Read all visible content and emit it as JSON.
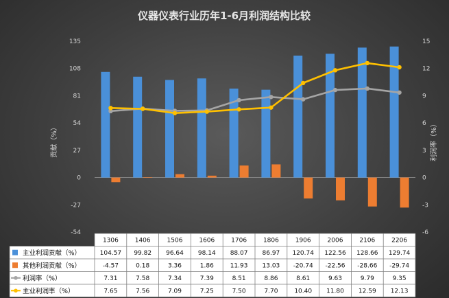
{
  "chart_data": {
    "type": "bar",
    "title": "仪器仪表行业历年1-6月利润结构比较",
    "categories": [
      "1306",
      "1406",
      "1506",
      "1606",
      "1706",
      "1806",
      "1906",
      "2006",
      "2106",
      "2206"
    ],
    "y_left": {
      "label": "贡献（%）",
      "ticks": [
        "135",
        "108",
        "81",
        "54",
        "27",
        "0",
        "-27",
        "-54"
      ],
      "range": [
        -54,
        135
      ]
    },
    "y_right": {
      "label": "利润率（%）",
      "ticks": [
        "15",
        "12",
        "9",
        "6",
        "3",
        "0",
        "-3",
        "-6"
      ],
      "range": [
        -6,
        15
      ]
    },
    "series": [
      {
        "name": "主业利润贡献（%）",
        "kind": "bar",
        "axis": "left",
        "color": "#4a90d9",
        "values": [
          104.57,
          99.82,
          96.64,
          98.14,
          88.07,
          86.97,
          120.74,
          122.56,
          128.66,
          129.74
        ],
        "labels": [
          "104.57",
          "99.82",
          "96.64",
          "98.14",
          "88.07",
          "86.97",
          "120.74",
          "122.56",
          "128.66",
          "129.74"
        ]
      },
      {
        "name": "其他利润贡献（%）",
        "kind": "bar",
        "axis": "left",
        "color": "#ed7d31",
        "values": [
          -4.57,
          0.18,
          3.36,
          1.86,
          11.93,
          13.03,
          -20.74,
          -22.56,
          -28.66,
          -29.74
        ],
        "labels": [
          "-4.57",
          "0.18",
          "3.36",
          "1.86",
          "11.93",
          "13.03",
          "-20.74",
          "-22.56",
          "-28.66",
          "-29.74"
        ]
      },
      {
        "name": "利润率（%）",
        "kind": "line",
        "axis": "right",
        "color": "#a5a5a5",
        "values": [
          7.31,
          7.58,
          7.34,
          7.39,
          8.51,
          8.86,
          8.61,
          9.63,
          9.79,
          9.35
        ],
        "labels": [
          "7.31",
          "7.58",
          "7.34",
          "7.39",
          "8.51",
          "8.86",
          "8.61",
          "9.63",
          "9.79",
          "9.35"
        ]
      },
      {
        "name": "主业利润率（%）",
        "kind": "line",
        "axis": "right",
        "color": "#ffc000",
        "values": [
          7.65,
          7.56,
          7.09,
          7.25,
          7.5,
          7.7,
          10.4,
          11.8,
          12.59,
          12.13
        ],
        "labels": [
          "7.65",
          "7.56",
          "7.09",
          "7.25",
          "7.50",
          "7.70",
          "10.40",
          "11.80",
          "12.59",
          "12.13"
        ]
      }
    ],
    "legend": "data-table-below",
    "grid": false
  }
}
